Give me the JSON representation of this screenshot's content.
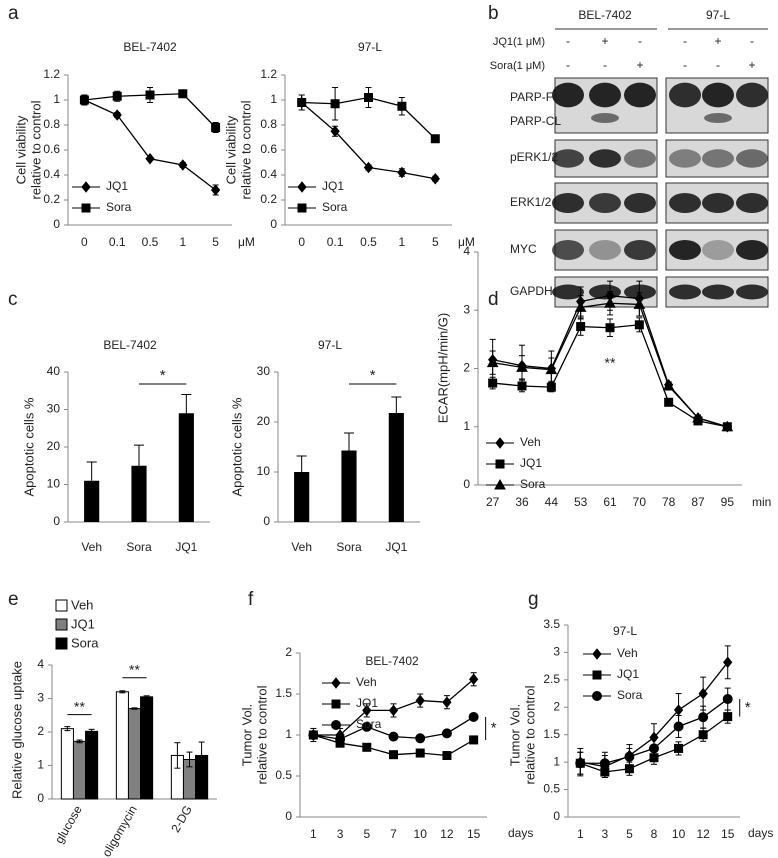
{
  "panels": [
    "a",
    "b",
    "c",
    "d",
    "e",
    "f",
    "g"
  ],
  "blot": {
    "cell_lines": [
      "BEL-7402",
      "97-L"
    ],
    "treatments": [
      {
        "name": "JQ1(1 μM)",
        "signs": [
          "-",
          "+",
          "-",
          "-",
          "+",
          "-"
        ]
      },
      {
        "name": "Sora(1 μM)",
        "signs": [
          "-",
          "-",
          "+",
          "-",
          "-",
          "+"
        ]
      }
    ],
    "proteins": [
      "PARP-FL",
      "PARP-CL",
      "pERK1/2",
      "ERK1/2",
      "MYC",
      "GAPDH"
    ]
  },
  "chart_data": [
    {
      "type": "line",
      "title": "BEL-7402",
      "ylabel": [
        "Cell viability",
        "relative  to  control"
      ],
      "xunit": "μM",
      "categories": [
        "0",
        "0.1",
        "0.5",
        "1",
        "5"
      ],
      "ylim": [
        0,
        1.2
      ],
      "yticks": [
        0,
        0.2,
        0.4,
        0.6,
        0.8,
        1,
        1.2
      ],
      "legend": "lower left",
      "series": [
        {
          "name": "JQ1",
          "color": "#000000",
          "marker": "diamond",
          "values": [
            1,
            0.88,
            0.53,
            0.48,
            0.28
          ],
          "errors": [
            0.04,
            0.02,
            0.01,
            0.02,
            0.04
          ]
        },
        {
          "name": "Sora",
          "color": "#000000",
          "marker": "square",
          "values": [
            1,
            1.03,
            1.04,
            1.05,
            0.78
          ],
          "errors": [
            0.04,
            0.04,
            0.06,
            0.02,
            0.04
          ]
        }
      ]
    },
    {
      "type": "line",
      "title": "97-L",
      "ylabel": [
        "Cell viability",
        "relative  to  control"
      ],
      "xunit": "μM",
      "categories": [
        "0",
        "0.1",
        "0.5",
        "1",
        "5"
      ],
      "ylim": [
        0,
        1.2
      ],
      "yticks": [
        0,
        0.2,
        0.4,
        0.6,
        0.8,
        1,
        1.2
      ],
      "legend": "lower left",
      "series": [
        {
          "name": "JQ1",
          "color": "#000000",
          "marker": "diamond",
          "values": [
            0.98,
            0.75,
            0.46,
            0.42,
            0.37
          ],
          "errors": [
            0.06,
            0.04,
            0.02,
            0.03,
            0.02
          ]
        },
        {
          "name": "Sora",
          "color": "#000000",
          "marker": "square",
          "values": [
            0.98,
            0.97,
            1.02,
            0.95,
            0.69
          ],
          "errors": [
            0.06,
            0.13,
            0.08,
            0.07,
            0.02
          ]
        }
      ]
    },
    {
      "type": "bar",
      "title": "BEL-7402",
      "ylabel": [
        "Apoptotic cells %"
      ],
      "categories": [
        "Veh",
        "Sora",
        "JQ1"
      ],
      "values": [
        11,
        15,
        29
      ],
      "errors": [
        5,
        5.5,
        5
      ],
      "color": "#000000",
      "ylim": [
        0,
        40
      ],
      "yticks": [
        0,
        10,
        20,
        30,
        40
      ],
      "annotations": [
        "*"
      ]
    },
    {
      "type": "bar",
      "title": "97-L",
      "ylabel": [
        "Apoptotic cells %"
      ],
      "categories": [
        "Veh",
        "Sora",
        "JQ1"
      ],
      "values": [
        10,
        14.3,
        21.8
      ],
      "errors": [
        3.2,
        3.5,
        3.2
      ],
      "color": "#000000",
      "ylim": [
        0,
        30
      ],
      "yticks": [
        0,
        10,
        20,
        30
      ],
      "annotations": [
        "*"
      ]
    },
    {
      "type": "line",
      "ylabel": [
        "ECAR(mpH/min/G)"
      ],
      "xunit": "min",
      "categories": [
        "27",
        "36",
        "44",
        "53",
        "61",
        "70",
        "78",
        "87",
        "95"
      ],
      "ylim": [
        0,
        4
      ],
      "yticks": [
        0,
        1,
        2,
        3,
        4
      ],
      "legend": "lower left",
      "annotations": [
        "**"
      ],
      "series": [
        {
          "name": "Veh",
          "color": "#000000",
          "marker": "diamond",
          "values": [
            2.15,
            2.05,
            2.0,
            3.15,
            3.25,
            3.2,
            1.72,
            1.15,
            1.0
          ],
          "errors": [
            0.35,
            0.35,
            0.3,
            0.25,
            0.25,
            0.3,
            0.05,
            0.05,
            0.05
          ]
        },
        {
          "name": "JQ1",
          "color": "#000000",
          "marker": "square",
          "values": [
            1.75,
            1.7,
            1.68,
            2.72,
            2.7,
            2.75,
            1.42,
            1.1,
            1.0
          ],
          "errors": [
            0.1,
            0.1,
            0.08,
            0.15,
            0.15,
            0.12,
            0.05,
            0.05,
            0.05
          ]
        },
        {
          "name": "Sora",
          "color": "#000000",
          "marker": "triangle",
          "values": [
            2.1,
            2.02,
            1.98,
            3.05,
            3.12,
            3.1,
            1.7,
            1.15,
            1.0
          ],
          "errors": [
            0.2,
            0.2,
            0.2,
            0.2,
            0.2,
            0.2,
            0.05,
            0.05,
            0.05
          ]
        }
      ]
    },
    {
      "type": "groupedbar",
      "ylabel": [
        "Relative  glucose uptake"
      ],
      "categories": [
        "glucose",
        "oligomycin",
        "2-DG"
      ],
      "ylim": [
        0,
        4
      ],
      "yticks": [
        0,
        1,
        2,
        3,
        4
      ],
      "legend": "upper left",
      "annotations": [
        "**",
        "**"
      ],
      "series": [
        {
          "name": "Veh",
          "color": "#ffffff",
          "values": [
            2.1,
            3.2,
            1.3
          ],
          "errors": [
            0.06,
            0.03,
            0.38
          ]
        },
        {
          "name": "JQ1",
          "color": "#808080",
          "values": [
            1.72,
            2.7,
            1.18
          ],
          "errors": [
            0.04,
            0.02,
            0.22
          ]
        },
        {
          "name": "Sora",
          "color": "#000000",
          "values": [
            2.02,
            3.05,
            1.3
          ],
          "errors": [
            0.06,
            0.03,
            0.4
          ]
        }
      ]
    },
    {
      "type": "line",
      "title": "BEL-7402",
      "ylabel": [
        "Tumor Vol.",
        "relative to control"
      ],
      "xunit": "days",
      "categories": [
        "1",
        "3",
        "5",
        "7",
        "10",
        "12",
        "15"
      ],
      "ylim": [
        0,
        2
      ],
      "yticks": [
        0,
        0.5,
        1,
        1.5,
        2
      ],
      "legend": "upper left",
      "annotations": [
        "*"
      ],
      "series": [
        {
          "name": "Veh",
          "color": "#000000",
          "marker": "diamond",
          "values": [
            1,
            1.0,
            1.3,
            1.3,
            1.42,
            1.4,
            1.68
          ],
          "errors": [
            0.08,
            0.08,
            0.08,
            0.08,
            0.08,
            0.08,
            0.08
          ]
        },
        {
          "name": "JQ1",
          "color": "#000000",
          "marker": "square",
          "values": [
            1,
            0.9,
            0.85,
            0.76,
            0.78,
            0.75,
            0.94
          ],
          "errors": [
            0.03,
            0.03,
            0.03,
            0.03,
            0.03,
            0.03,
            0.03
          ]
        },
        {
          "name": "Sora",
          "color": "#000000",
          "marker": "circle",
          "values": [
            1,
            0.95,
            1.1,
            0.98,
            0.96,
            1.02,
            1.22
          ],
          "errors": [
            0.03,
            0.03,
            0.03,
            0.03,
            0.03,
            0.03,
            0.03
          ]
        }
      ]
    },
    {
      "type": "line",
      "title": "97-L",
      "ylabel": [
        "Tumor Vol.",
        "relative to control"
      ],
      "xunit": "days",
      "categories": [
        "1",
        "3",
        "5",
        "8",
        "10",
        "12",
        "15"
      ],
      "ylim": [
        0,
        3.5
      ],
      "yticks": [
        0,
        0.5,
        1,
        1.5,
        2,
        2.5,
        3,
        3.5
      ],
      "legend": "upper left",
      "annotations": [
        "*"
      ],
      "series": [
        {
          "name": "Veh",
          "color": "#000000",
          "marker": "diamond",
          "values": [
            1,
            0.92,
            1.12,
            1.45,
            1.95,
            2.25,
            2.82
          ],
          "errors": [
            0.25,
            0.2,
            0.2,
            0.25,
            0.3,
            0.3,
            0.3
          ]
        },
        {
          "name": "JQ1",
          "color": "#000000",
          "marker": "square",
          "values": [
            0.98,
            0.82,
            0.88,
            1.08,
            1.25,
            1.5,
            1.83
          ],
          "errors": [
            0.2,
            0.1,
            0.12,
            0.12,
            0.12,
            0.12,
            0.12
          ]
        },
        {
          "name": "Sora",
          "color": "#000000",
          "marker": "circle",
          "values": [
            0.98,
            0.98,
            1.1,
            1.25,
            1.65,
            1.82,
            2.15
          ],
          "errors": [
            0.2,
            0.2,
            0.15,
            0.2,
            0.2,
            0.2,
            0.2
          ]
        }
      ]
    }
  ]
}
